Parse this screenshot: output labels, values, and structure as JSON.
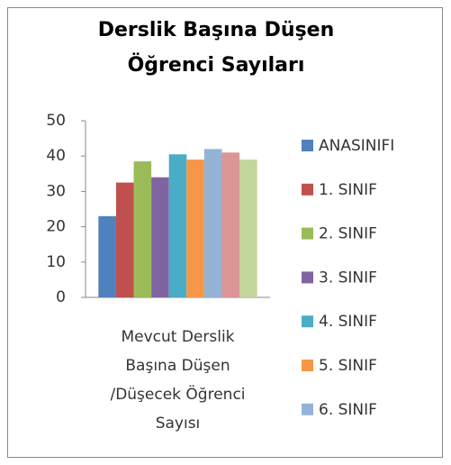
{
  "chart_data": {
    "type": "bar",
    "title": "Derslik Başına Düşen Öğrenci Sayıları",
    "categories": [
      "Mevcut Derslik Başına Düşen /Düşecek Öğrenci Sayısı"
    ],
    "series": [
      {
        "name": "ANASINIFI",
        "color": "#4F81BD",
        "values": [
          23
        ]
      },
      {
        "name": "1. SINIF",
        "color": "#C0504D",
        "values": [
          32.5
        ]
      },
      {
        "name": "2. SINIF",
        "color": "#9BBB59",
        "values": [
          38.5
        ]
      },
      {
        "name": "3. SINIF",
        "color": "#8064A2",
        "values": [
          34
        ]
      },
      {
        "name": "4. SINIF",
        "color": "#4BACC6",
        "values": [
          40.5
        ]
      },
      {
        "name": "5. SINIF",
        "color": "#F79646",
        "values": [
          39
        ]
      },
      {
        "name": "6. SINIF",
        "color": "#95B3D7",
        "values": [
          42
        ]
      },
      {
        "color": "#D99694",
        "values": [
          41
        ]
      },
      {
        "color": "#C3D69B",
        "values": [
          39
        ]
      }
    ],
    "ylim": [
      0,
      50
    ],
    "yticks": [
      0,
      10,
      20,
      30,
      40,
      50
    ],
    "grid": false
  }
}
